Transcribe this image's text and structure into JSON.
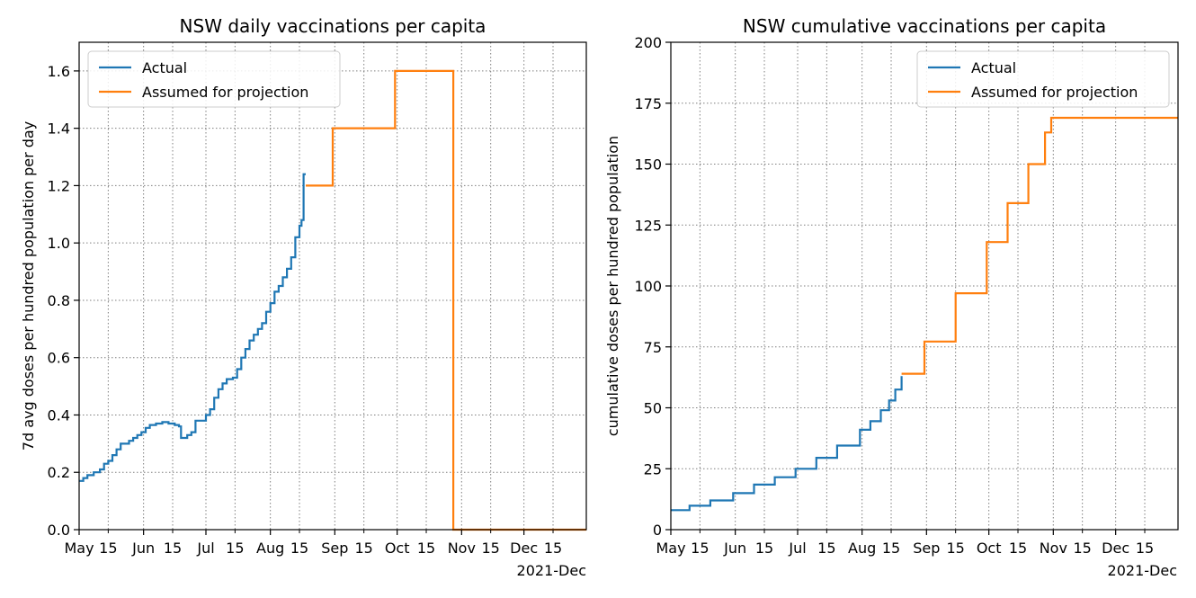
{
  "chart_data": [
    {
      "type": "line",
      "drawstyle": "steps-post",
      "title": "NSW daily vaccinations per capita",
      "xlabel": "",
      "ylabel": "7d avg doses per hundred population per day",
      "x_axis": "date",
      "xlim": [
        "2021-05-01",
        "2021-12-31"
      ],
      "ylim": [
        0,
        1.7
      ],
      "yticks": [
        0.0,
        0.2,
        0.4,
        0.6,
        0.8,
        1.0,
        1.2,
        1.4,
        1.6
      ],
      "ytick_labels": [
        "0.0",
        "0.2",
        "0.4",
        "0.6",
        "0.8",
        "1.0",
        "1.2",
        "1.4",
        "1.6"
      ],
      "xticks_major": [
        "2021-05-01",
        "2021-06-01",
        "2021-07-01",
        "2021-08-01",
        "2021-09-01",
        "2021-10-01",
        "2021-11-01",
        "2021-12-01"
      ],
      "xtick_major_labels": [
        "May",
        "Jun",
        "Jul",
        "Aug",
        "Sep",
        "Oct",
        "Nov",
        "Dec"
      ],
      "xticks_minor": [
        "2021-05-15",
        "2021-06-15",
        "2021-07-15",
        "2021-08-15",
        "2021-09-15",
        "2021-10-15",
        "2021-11-15",
        "2021-12-15"
      ],
      "xtick_minor_labels": [
        "15",
        "15",
        "15",
        "15",
        "15",
        "15",
        "15",
        "15"
      ],
      "x_offset_label": "2021-Dec",
      "grid": true,
      "legend": "top-left",
      "series": [
        {
          "name": "Actual",
          "color": "#1f77b4",
          "points": [
            [
              "2021-05-01",
              0.17
            ],
            [
              "2021-05-03",
              0.18
            ],
            [
              "2021-05-05",
              0.19
            ],
            [
              "2021-05-08",
              0.2
            ],
            [
              "2021-05-11",
              0.21
            ],
            [
              "2021-05-13",
              0.23
            ],
            [
              "2021-05-15",
              0.24
            ],
            [
              "2021-05-17",
              0.26
            ],
            [
              "2021-05-19",
              0.28
            ],
            [
              "2021-05-21",
              0.3
            ],
            [
              "2021-05-25",
              0.31
            ],
            [
              "2021-05-27",
              0.32
            ],
            [
              "2021-05-29",
              0.33
            ],
            [
              "2021-05-31",
              0.34
            ],
            [
              "2021-06-02",
              0.355
            ],
            [
              "2021-06-04",
              0.365
            ],
            [
              "2021-06-07",
              0.37
            ],
            [
              "2021-06-10",
              0.375
            ],
            [
              "2021-06-13",
              0.37
            ],
            [
              "2021-06-16",
              0.365
            ],
            [
              "2021-06-18",
              0.36
            ],
            [
              "2021-06-19",
              0.32
            ],
            [
              "2021-06-22",
              0.33
            ],
            [
              "2021-06-24",
              0.34
            ],
            [
              "2021-06-26",
              0.38
            ],
            [
              "2021-07-01",
              0.4
            ],
            [
              "2021-07-03",
              0.42
            ],
            [
              "2021-07-05",
              0.46
            ],
            [
              "2021-07-07",
              0.49
            ],
            [
              "2021-07-09",
              0.51
            ],
            [
              "2021-07-11",
              0.525
            ],
            [
              "2021-07-14",
              0.53
            ],
            [
              "2021-07-16",
              0.56
            ],
            [
              "2021-07-18",
              0.6
            ],
            [
              "2021-07-20",
              0.63
            ],
            [
              "2021-07-22",
              0.66
            ],
            [
              "2021-07-24",
              0.68
            ],
            [
              "2021-07-26",
              0.7
            ],
            [
              "2021-07-28",
              0.72
            ],
            [
              "2021-07-30",
              0.76
            ],
            [
              "2021-08-01",
              0.79
            ],
            [
              "2021-08-03",
              0.83
            ],
            [
              "2021-08-05",
              0.85
            ],
            [
              "2021-08-07",
              0.88
            ],
            [
              "2021-08-09",
              0.91
            ],
            [
              "2021-08-11",
              0.95
            ],
            [
              "2021-08-13",
              1.02
            ],
            [
              "2021-08-15",
              1.06
            ],
            [
              "2021-08-16",
              1.08
            ],
            [
              "2021-08-17",
              1.24
            ],
            [
              "2021-08-18",
              1.24
            ]
          ]
        },
        {
          "name": "Assumed for projection",
          "color": "#ff7f0e",
          "points": [
            [
              "2021-08-18",
              1.2
            ],
            [
              "2021-08-31",
              1.4
            ],
            [
              "2021-09-30",
              1.6
            ],
            [
              "2021-10-28",
              0.0
            ],
            [
              "2021-12-31",
              0.0
            ]
          ]
        }
      ]
    },
    {
      "type": "line",
      "drawstyle": "steps-post",
      "title": "NSW cumulative vaccinations per capita",
      "xlabel": "",
      "ylabel": "cumulative doses per hundred population",
      "x_axis": "date",
      "xlim": [
        "2021-05-01",
        "2021-12-31"
      ],
      "ylim": [
        0,
        200
      ],
      "yticks": [
        0,
        25,
        50,
        75,
        100,
        125,
        150,
        175,
        200
      ],
      "ytick_labels": [
        "0",
        "25",
        "50",
        "75",
        "100",
        "125",
        "150",
        "175",
        "200"
      ],
      "xticks_major": [
        "2021-05-01",
        "2021-06-01",
        "2021-07-01",
        "2021-08-01",
        "2021-09-01",
        "2021-10-01",
        "2021-11-01",
        "2021-12-01"
      ],
      "xtick_major_labels": [
        "May",
        "Jun",
        "Jul",
        "Aug",
        "Sep",
        "Oct",
        "Nov",
        "Dec"
      ],
      "xticks_minor": [
        "2021-05-15",
        "2021-06-15",
        "2021-07-15",
        "2021-08-15",
        "2021-09-15",
        "2021-10-15",
        "2021-11-15",
        "2021-12-15"
      ],
      "xtick_minor_labels": [
        "15",
        "15",
        "15",
        "15",
        "15",
        "15",
        "15",
        "15"
      ],
      "x_offset_label": "2021-Dec",
      "grid": true,
      "legend": "top-right",
      "series": [
        {
          "name": "Actual",
          "color": "#1f77b4",
          "points": [
            [
              "2021-05-01",
              8.0
            ],
            [
              "2021-05-10",
              9.8
            ],
            [
              "2021-05-20",
              12.0
            ],
            [
              "2021-05-31",
              15.0
            ],
            [
              "2021-06-10",
              18.5
            ],
            [
              "2021-06-20",
              21.5
            ],
            [
              "2021-06-30",
              25.0
            ],
            [
              "2021-07-10",
              29.5
            ],
            [
              "2021-07-20",
              34.5
            ],
            [
              "2021-07-31",
              41.0
            ],
            [
              "2021-08-05",
              44.5
            ],
            [
              "2021-08-10",
              49.0
            ],
            [
              "2021-08-14",
              53.0
            ],
            [
              "2021-08-17",
              57.5
            ],
            [
              "2021-08-20",
              63.0
            ]
          ]
        },
        {
          "name": "Assumed for projection",
          "color": "#ff7f0e",
          "points": [
            [
              "2021-08-20",
              64.0
            ],
            [
              "2021-08-31",
              77.2
            ],
            [
              "2021-09-15",
              97.0
            ],
            [
              "2021-09-30",
              118.0
            ],
            [
              "2021-10-10",
              134.0
            ],
            [
              "2021-10-20",
              150.0
            ],
            [
              "2021-10-28",
              163.0
            ],
            [
              "2021-10-31",
              169.0
            ],
            [
              "2021-12-31",
              169.0
            ]
          ]
        }
      ]
    }
  ]
}
